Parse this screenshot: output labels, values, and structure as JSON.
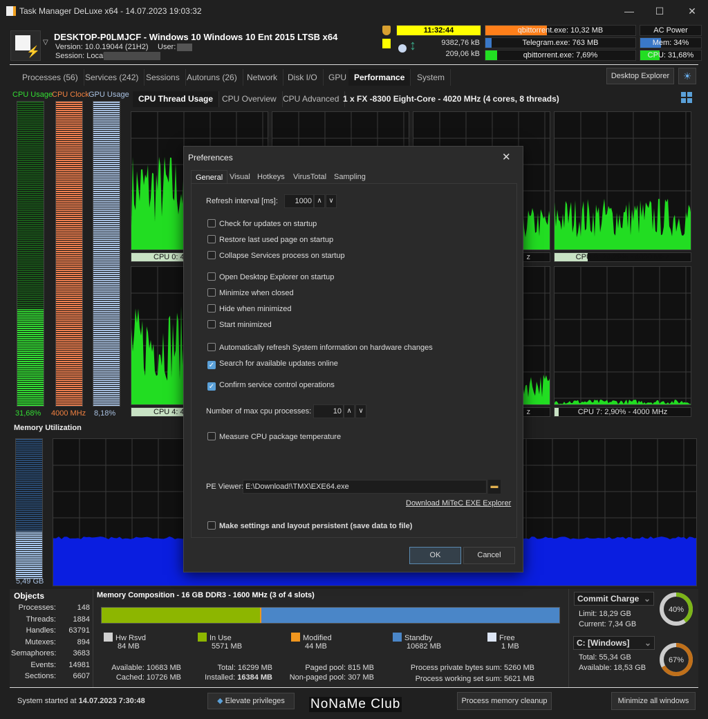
{
  "window": {
    "title": "Task Manager DeLuxe x64 - 14.07.2023 19:03:32",
    "minimize": "—",
    "maximize": "☐",
    "close": "✕"
  },
  "header": {
    "machine": "DESKTOP-P0LMJCF - Windows 10 Windows 10 Ent 2015 LTSB x64",
    "version": "Version: 10.0.19044 (21H2)",
    "user_label": "User:",
    "session_label": "Session: Local",
    "clock": "11:32:44",
    "net_down": "9382,76 kB",
    "net_up": "209,06 kB",
    "top_mem": {
      "text": "qbittorrent.exe: 10,32 MB",
      "pct": 41
    },
    "top_io": {
      "text": "Telegram.exe: 763 MB",
      "pct": 4
    },
    "top_cpu": {
      "text": "qbittorrent.exe: 7,69%",
      "pct": 8
    },
    "power": "AC Power",
    "mem": {
      "text": "Mem: 34%",
      "pct": 34
    },
    "cpu": {
      "text": "CPU: 31,68%",
      "pct": 32
    },
    "colors": {
      "clock": "#ffff00",
      "mem_bar": "#ff7f1a",
      "io_bar": "#3a78c8",
      "cpu_bar": "#22dd22"
    }
  },
  "tabs": [
    {
      "label": "Processes (56)"
    },
    {
      "label": "Services (242)"
    },
    {
      "label": "Sessions"
    },
    {
      "label": "Autoruns (26)"
    },
    {
      "label": "Network"
    },
    {
      "label": "Disk I/O"
    },
    {
      "label": "GPU"
    },
    {
      "label": "Performance",
      "active": true
    },
    {
      "label": "System"
    }
  ],
  "desktop_explorer": "Desktop Explorer",
  "side": {
    "cpu_usage": "CPU Usage",
    "cpu_clock": "CPU Clock",
    "gpu_usage": "GPU Usage",
    "cpu_usage_val": "31,68%",
    "cpu_clock_val": "4000 MHz",
    "gpu_usage_val": "8,18%",
    "cpu_usage_pct": 31.68,
    "cpu_clock_pct": 100,
    "gpu_usage_pct": 8.18
  },
  "subtabs": [
    {
      "label": "CPU Thread Usage",
      "active": true
    },
    {
      "label": "CPU Overview"
    },
    {
      "label": "CPU Advanced"
    }
  ],
  "processor": "1 x FX -8300 Eight-Core - 4020 MHz (4 cores, 8 threads)",
  "cpus": [
    {
      "label": "CPU 0: 4",
      "pct": 45
    },
    {
      "label": "",
      "pct": 30
    },
    {
      "label": "z",
      "pct": 20
    },
    {
      "label": "CPU 3: 24,29% - 4000 MHz",
      "pct": 24.29
    },
    {
      "label": "CPU 4: 4",
      "pct": 45
    },
    {
      "label": "",
      "pct": 20
    },
    {
      "label": "z",
      "pct": 15
    },
    {
      "label": "CPU 7: 2,90% - 4000 MHz",
      "pct": 2.9
    }
  ],
  "memory": {
    "title": "Memory Utilization",
    "value": "5,49 GB",
    "pct": 34
  },
  "objects": {
    "title": "Objects",
    "rows": [
      {
        "k": "Processes:",
        "v": "148"
      },
      {
        "k": "Threads:",
        "v": "1884"
      },
      {
        "k": "Handles:",
        "v": "63791"
      },
      {
        "k": "Mutexes:",
        "v": "894"
      },
      {
        "k": "Semaphores:",
        "v": "3683"
      },
      {
        "k": "Events:",
        "v": "14981"
      },
      {
        "k": "Sections:",
        "v": "6607"
      }
    ]
  },
  "composition": {
    "title": "Memory Composition - 16 GB DDR3 - 1600 MHz (3 of 4 slots)",
    "legend": [
      {
        "name": "Hw Rsvd",
        "val": "84 MB",
        "color": "#d0d0d0"
      },
      {
        "name": "In Use",
        "val": "5571 MB",
        "color": "#8db600"
      },
      {
        "name": "Modified",
        "val": "44 MB",
        "color": "#f0961e"
      },
      {
        "name": "Standby",
        "val": "10682 MB",
        "color": "#4a86c8"
      },
      {
        "name": "Free",
        "val": "1 MB",
        "color": "#dde6f5"
      }
    ],
    "available": "Available: 10683 MB",
    "cached": "Cached: 10726 MB",
    "total": "Total: 16299 MB",
    "installed_label": "Installed:",
    "installed": "16384 MB",
    "paged": "Paged pool: 815 MB",
    "nonpaged": "Non-paged pool: 307 MB",
    "private": "Process private bytes sum: 5260 MB",
    "working": "Process working set sum: 5621 MB"
  },
  "commit": {
    "select": "Commit Charge",
    "limit": "Limit: 18,29 GB",
    "current": "Current: 7,34 GB",
    "pct_label": "40%",
    "pct": 40,
    "color": "#7cb518"
  },
  "disk": {
    "select": "C: [Windows]",
    "total": "Total: 55,34 GB",
    "available": "Available: 18,53 GB",
    "pct_label": "67%",
    "pct": 67,
    "color": "#c0701a"
  },
  "footer": {
    "started_label": "System started at",
    "started": "14.07.2023 7:30:48",
    "elevate": "Elevate privileges",
    "cleanup": "Process memory cleanup",
    "minimize_all": "Minimize all windows",
    "watermark": "NoNaMe Club"
  },
  "dialog": {
    "title": "Preferences",
    "close": "✕",
    "tabs": [
      {
        "label": "General",
        "active": true
      },
      {
        "label": "Visual"
      },
      {
        "label": "Hotkeys"
      },
      {
        "label": "VirusTotal"
      },
      {
        "label": "Sampling"
      }
    ],
    "refresh_label": "Refresh interval [ms]:",
    "refresh_value": "1000",
    "checks": [
      {
        "label": "Check for updates on startup",
        "checked": false
      },
      {
        "label": "Restore last used page on startup",
        "checked": false
      },
      {
        "label": "Collapse Services process on startup",
        "checked": false
      },
      {
        "label": "Open Desktop Explorer on startup",
        "checked": false
      },
      {
        "label": "Minimize when closed",
        "checked": false
      },
      {
        "label": "Hide when minimized",
        "checked": false
      },
      {
        "label": "Start minimized",
        "checked": false
      },
      {
        "label": "Automatically refresh System information on hardware changes",
        "checked": false
      },
      {
        "label": "Search for available updates online",
        "checked": true
      },
      {
        "label": "Confirm service control operations",
        "checked": true
      }
    ],
    "maxcpu_label": "Number of max cpu processes:",
    "maxcpu_value": "10",
    "measure": {
      "label": "Measure CPU package temperature",
      "checked": false
    },
    "pe_label": "PE Viewer:",
    "pe_value": "E:\\Download!\\TMX\\EXE64.exe",
    "download_link": "Download MiTeC EXE Explorer",
    "persist": {
      "label": "Make settings and layout persistent (save data to file)",
      "checked": false
    },
    "ok": "OK",
    "cancel": "Cancel"
  }
}
